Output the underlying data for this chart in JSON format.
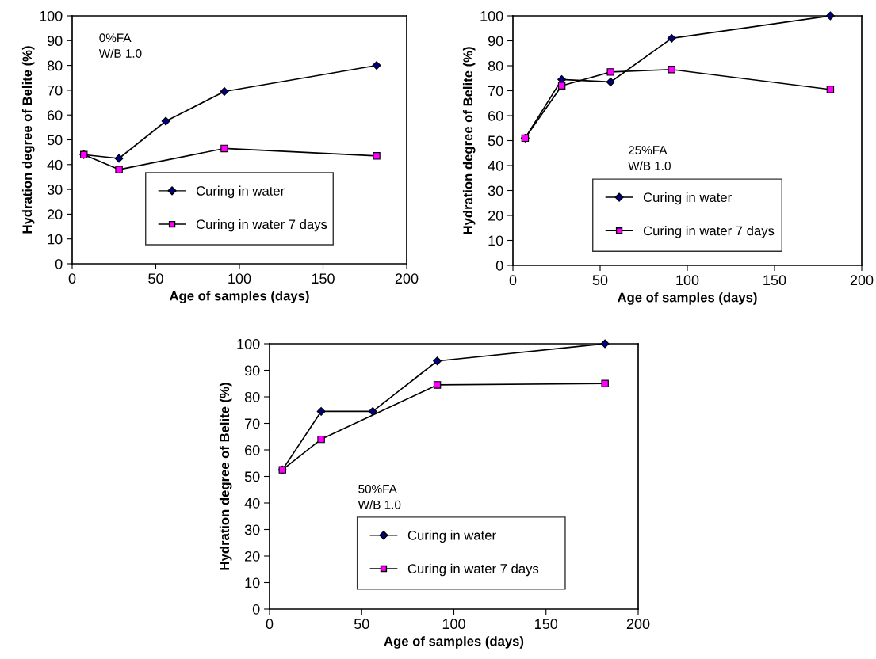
{
  "chart_data": [
    {
      "type": "line",
      "xlabel": "Age of samples (days)",
      "ylabel": "Hydration degree of Belite (%)",
      "annotations": [
        "0%FA\nW/B 1.0"
      ],
      "xlim": [
        0,
        200
      ],
      "xticks": [
        0,
        50,
        100,
        150,
        200
      ],
      "ylim": [
        0,
        100
      ],
      "yticks": [
        0,
        10,
        20,
        30,
        40,
        50,
        60,
        70,
        80,
        90,
        100
      ],
      "grid": false,
      "legend": "bottom",
      "line_style": "solid",
      "series": [
        {
          "name": "Curing in water",
          "color": "#000080",
          "marker": "diamond",
          "x": [
            7,
            28,
            56,
            91,
            182
          ],
          "values": [
            44,
            42.5,
            57.5,
            69.5,
            80
          ]
        },
        {
          "name": "Curing in water 7 days",
          "color": "#ff00ff",
          "marker": "square",
          "x": [
            7,
            28,
            91,
            182
          ],
          "values": [
            44,
            38,
            46.5,
            43.5
          ]
        }
      ]
    },
    {
      "type": "line",
      "xlabel": "Age of samples (days)",
      "ylabel": "Hydration degree of Belite (%)",
      "annotations": [
        "25%FA\nW/B 1.0"
      ],
      "xlim": [
        0,
        200
      ],
      "xticks": [
        0,
        50,
        100,
        150,
        200
      ],
      "ylim": [
        0,
        100
      ],
      "yticks": [
        0,
        10,
        20,
        30,
        40,
        50,
        60,
        70,
        80,
        90,
        100
      ],
      "grid": false,
      "legend": "bottom",
      "line_style": "solid",
      "series": [
        {
          "name": "Curing in water",
          "color": "#000080",
          "marker": "diamond",
          "x": [
            7,
            28,
            56,
            91,
            182
          ],
          "values": [
            51,
            74.5,
            73.5,
            91,
            100
          ]
        },
        {
          "name": "Curing in water 7 days",
          "color": "#ff00ff",
          "marker": "square",
          "x": [
            7,
            28,
            56,
            91,
            182
          ],
          "values": [
            51,
            72,
            77.5,
            78.5,
            70.5
          ]
        }
      ]
    },
    {
      "type": "line",
      "xlabel": "Age of samples (days)",
      "ylabel": "Hydration degree of Belite (%)",
      "annotations": [
        "50%FA\nW/B 1.0"
      ],
      "xlim": [
        0,
        200
      ],
      "xticks": [
        0,
        50,
        100,
        150,
        200
      ],
      "ylim": [
        0,
        100
      ],
      "yticks": [
        0,
        10,
        20,
        30,
        40,
        50,
        60,
        70,
        80,
        90,
        100
      ],
      "grid": false,
      "legend": "bottom",
      "line_style": "solid",
      "series": [
        {
          "name": "Curing in water",
          "color": "#000080",
          "marker": "diamond",
          "x": [
            7,
            28,
            56,
            91,
            182
          ],
          "values": [
            52.5,
            74.5,
            74.5,
            93.5,
            100
          ]
        },
        {
          "name": "Curing in water 7 days",
          "color": "#ff00ff",
          "marker": "square",
          "x": [
            7,
            28,
            91,
            182
          ],
          "values": [
            52.5,
            64,
            84.5,
            85
          ]
        }
      ]
    }
  ]
}
